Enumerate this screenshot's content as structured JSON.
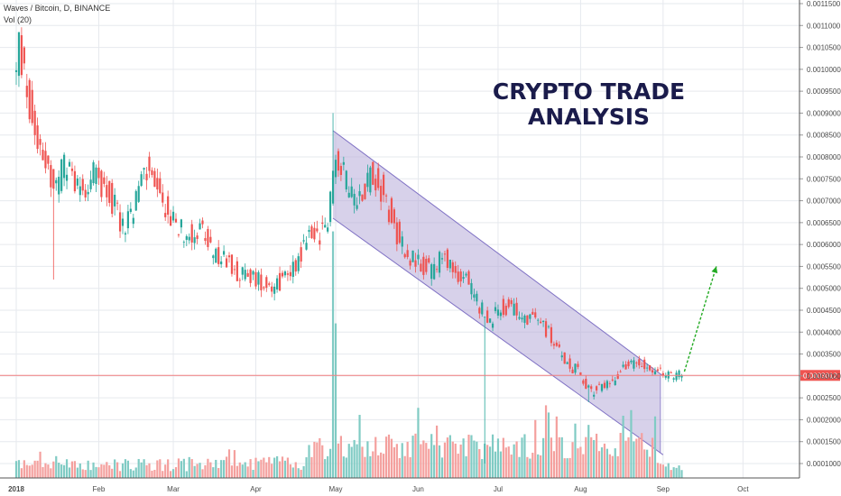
{
  "header": {
    "title": "Waves / Bitcoin, D, BINANCE",
    "volume_label": "Vol (20)"
  },
  "annotation": {
    "line1": "CRYPTO TRADE",
    "line2": "ANALYSIS"
  },
  "colors": {
    "up": "#26a69a",
    "down": "#ef5350",
    "up_volume": "#80cbc4",
    "down_volume": "#f4a09e",
    "channel_fill": "#b7acd9",
    "channel_line": "#7f71c4",
    "projection_arrow": "#22aa22",
    "price_line": "#f28080",
    "price_badge": "#ef5350",
    "grid": "#e6e9ee",
    "title_text": "#1a1b4b"
  },
  "chart_data": {
    "type": "candlestick",
    "symbol": "Waves / Bitcoin",
    "interval": "D",
    "exchange": "BINANCE",
    "x_ticks": [
      "2018",
      "Feb",
      "Mar",
      "Apr",
      "May",
      "Jun",
      "Jul",
      "Aug",
      "Sep",
      "Oct"
    ],
    "y_ticks": [
      "0.0001000",
      "0.0001500",
      "0.0002000",
      "0.0002500",
      "0.0003000",
      "0.0003500",
      "0.0004000",
      "0.0004500",
      "0.0005000",
      "0.0005500",
      "0.0006000",
      "0.0006500",
      "0.0007000",
      "0.0007500",
      "0.0008000",
      "0.0008500",
      "0.0009000",
      "0.0009500",
      "0.0010000",
      "0.0010500",
      "0.0011000",
      "0.0011500"
    ],
    "ylim": [
      8e-05,
      0.00116
    ],
    "last_price": "0.0003012",
    "last_price_value": 0.0003012,
    "price_path": [
      [
        "2018-01-01",
        0.00098
      ],
      [
        "2018-01-03",
        0.00105
      ],
      [
        "2018-01-08",
        0.00088
      ],
      [
        "2018-01-12",
        0.00082
      ],
      [
        "2018-01-16",
        0.00072
      ],
      [
        "2018-01-20",
        0.00078
      ],
      [
        "2018-01-26",
        0.00073
      ],
      [
        "2018-02-01",
        0.00076
      ],
      [
        "2018-02-07",
        0.0007
      ],
      [
        "2018-02-11",
        0.00064
      ],
      [
        "2018-02-15",
        0.00067
      ],
      [
        "2018-02-19",
        0.00078
      ],
      [
        "2018-02-24",
        0.00072
      ],
      [
        "2018-03-01",
        0.00066
      ],
      [
        "2018-03-07",
        0.00062
      ],
      [
        "2018-03-12",
        0.00064
      ],
      [
        "2018-03-16",
        0.00058
      ],
      [
        "2018-03-22",
        0.00056
      ],
      [
        "2018-03-28",
        0.00053
      ],
      [
        "2018-04-03",
        0.00052
      ],
      [
        "2018-04-08",
        0.00051
      ],
      [
        "2018-04-12",
        0.00052
      ],
      [
        "2018-04-17",
        0.00056
      ],
      [
        "2018-04-22",
        0.00062
      ],
      [
        "2018-04-28",
        0.00063
      ],
      [
        "2018-04-30",
        0.0007
      ],
      [
        "2018-05-02",
        0.00081
      ],
      [
        "2018-05-06",
        0.00074
      ],
      [
        "2018-05-10",
        0.0007
      ],
      [
        "2018-05-15",
        0.00076
      ],
      [
        "2018-05-20",
        0.00072
      ],
      [
        "2018-05-24",
        0.00064
      ],
      [
        "2018-05-29",
        0.00058
      ],
      [
        "2018-06-03",
        0.00055
      ],
      [
        "2018-06-08",
        0.00054
      ],
      [
        "2018-06-12",
        0.00058
      ],
      [
        "2018-06-16",
        0.00054
      ],
      [
        "2018-06-20",
        0.00052
      ],
      [
        "2018-06-25",
        0.00046
      ],
      [
        "2018-06-29",
        0.00042
      ],
      [
        "2018-07-03",
        0.00046
      ],
      [
        "2018-07-08",
        0.00045
      ],
      [
        "2018-07-14",
        0.00043
      ],
      [
        "2018-07-19",
        0.00042
      ],
      [
        "2018-07-24",
        0.00036
      ],
      [
        "2018-07-28",
        0.00033
      ],
      [
        "2018-08-01",
        0.00031
      ],
      [
        "2018-08-06",
        0.00026
      ],
      [
        "2018-08-10",
        0.00028
      ],
      [
        "2018-08-14",
        0.00029
      ],
      [
        "2018-08-18",
        0.00032
      ],
      [
        "2018-08-22",
        0.00033
      ],
      [
        "2018-08-26",
        0.00033
      ],
      [
        "2018-08-30",
        0.00031
      ],
      [
        "2018-09-03",
        0.0003
      ],
      [
        "2018-09-08",
        0.000301
      ]
    ],
    "spikes": [
      {
        "date": "2018-01-02",
        "high": 0.00108
      },
      {
        "date": "2018-01-15",
        "low": 0.00052
      },
      {
        "date": "2018-04-30",
        "high": 0.0009
      },
      {
        "date": "2018-06-26",
        "low": 0.0001
      },
      {
        "date": "2018-06-28",
        "high": 0.00043
      },
      {
        "date": "2018-08-04",
        "low": 0.00024
      }
    ],
    "channel": {
      "upper": [
        [
          "2018-04-30",
          0.00086
        ],
        [
          "2018-09-01",
          0.0003
        ]
      ],
      "lower": [
        [
          "2018-04-30",
          0.00066
        ],
        [
          "2018-09-01",
          0.00012
        ]
      ],
      "fill_right_date": "2018-08-31"
    },
    "projection": {
      "from": [
        "2018-09-09",
        0.00031
      ],
      "to": [
        "2018-09-21",
        0.00055
      ]
    },
    "volume_spikes": [
      {
        "date": "2018-04-30",
        "volume": 0.00063
      },
      {
        "date": "2018-05-01",
        "volume": 0.00042
      }
    ]
  }
}
